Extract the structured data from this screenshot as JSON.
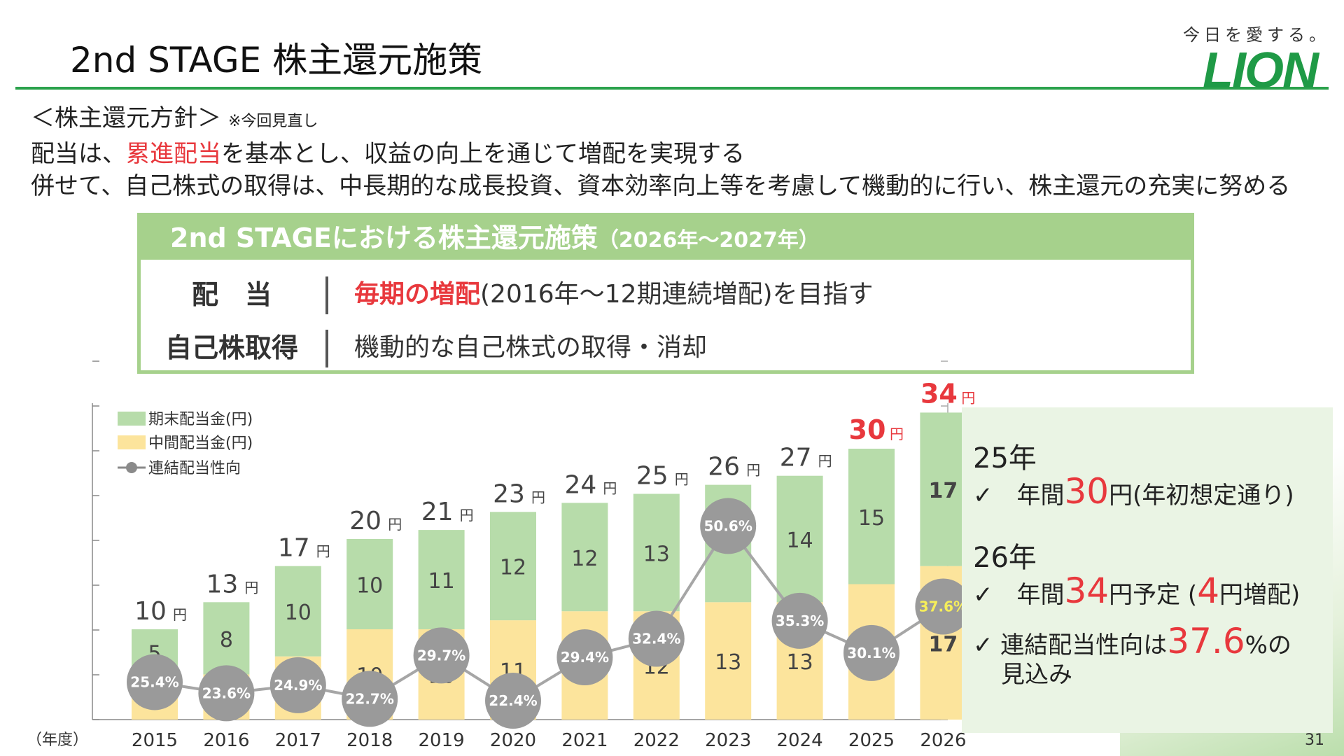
{
  "title": "2nd STAGE 株主還元施策",
  "logo": {
    "tagline": "今日を愛する。",
    "word": "LION"
  },
  "policy": {
    "head": "＜株主還元方針＞",
    "note": "※今回見直し",
    "line1_pre": "配当は、",
    "line1_red": "累進配当",
    "line1_post": "を基本とし、収益の向上を通じて増配を実現する",
    "line2": "併せて、自己株式の取得は、中長期的な成長投資、資本効率向上等を考慮して機動的に行い、株主還元の充実に努める"
  },
  "box": {
    "header": "2nd STAGEにおける株主還元施策",
    "header_sub": "（2026年～2027年）",
    "row1_label": "配　当",
    "row1_red": "毎期の増配",
    "row1_rest": "(2016年～12期連続増配)を目指す",
    "row2_label": "自己株取得",
    "row2_text": "機動的な自己株式の取得・消却"
  },
  "chart_data": {
    "type": "bar",
    "xlabel": "（年度）",
    "categories": [
      "2015",
      "2016",
      "2017",
      "2018",
      "2019",
      "2020",
      "2021",
      "2022",
      "2023",
      "2024",
      "2025",
      "2026"
    ],
    "series": [
      {
        "name": "期末配当金(円)",
        "values": [
          5,
          8,
          10,
          10,
          11,
          12,
          12,
          13,
          13,
          14,
          15,
          17
        ],
        "color": "#b7dcaa"
      },
      {
        "name": "中間配当金(円)",
        "values": [
          5,
          5,
          7,
          10,
          10,
          11,
          12,
          12,
          13,
          13,
          15,
          17
        ],
        "color": "#fce49c"
      },
      {
        "name": "連結配当性向",
        "values": [
          25.4,
          23.6,
          24.9,
          22.7,
          29.7,
          22.4,
          29.4,
          32.4,
          50.6,
          35.3,
          30.1,
          37.6
        ],
        "unit": "%",
        "color": "#999999"
      }
    ],
    "totals": [
      10,
      13,
      17,
      20,
      21,
      23,
      24,
      25,
      26,
      27,
      30,
      34
    ],
    "total_unit": "円",
    "highlight_totals": [
      "2025",
      "2026"
    ],
    "legend": "top-left"
  },
  "side": {
    "y25": "25年",
    "y25_pre": "✓　年間",
    "y25_big": "30",
    "y25_post": "円(年初想定通り)",
    "y26": "26年",
    "y26_pre": "✓　年間",
    "y26_big": "34",
    "y26_mid": "円予定 (",
    "y26_big2": "4",
    "y26_post": "円増配)",
    "y26b_pre": "✓ 連結配当性向は",
    "y26b_big": "37.6",
    "y26b_post": "%の",
    "y26b_line2": "見込み"
  },
  "page_number": "31"
}
